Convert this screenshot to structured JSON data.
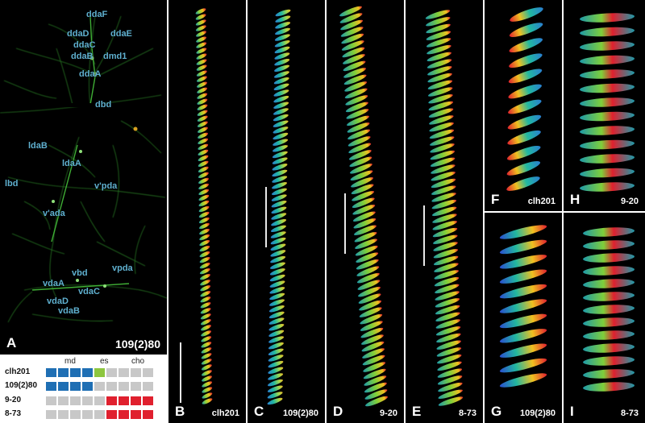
{
  "panel_a": {
    "label": "A",
    "strain": "109(2)80",
    "neurons": [
      "ddaF",
      "ddaD",
      "ddaE",
      "ddaC",
      "ddaB",
      "dmd1",
      "ddaA",
      "dbd",
      "ldaB",
      "ldaA",
      "lbd",
      "v'pda",
      "v'ada",
      "vbd",
      "vpda",
      "vdaA",
      "vdaC",
      "vdaD",
      "vdaB"
    ]
  },
  "table": {
    "headers": [
      "md",
      "es",
      "cho"
    ],
    "rows": [
      {
        "name": "clh201",
        "cells": [
          "md",
          "md",
          "md",
          "md",
          "es",
          "none",
          "none",
          "none",
          "none"
        ]
      },
      {
        "name": "109(2)80",
        "cells": [
          "md",
          "md",
          "md",
          "md",
          "none",
          "none",
          "none",
          "none",
          "none"
        ]
      },
      {
        "name": "9-20",
        "cells": [
          "none",
          "none",
          "none",
          "none",
          "none",
          "cho",
          "cho",
          "cho",
          "cho"
        ]
      },
      {
        "name": "8-73",
        "cells": [
          "none",
          "none",
          "none",
          "none",
          "none",
          "cho",
          "cho",
          "cho",
          "cho"
        ]
      }
    ],
    "colors": {
      "md": "#1f6fb4",
      "es": "#8dc63f",
      "cho": "#e0202e",
      "none": "#c8c8c8"
    }
  },
  "panels": {
    "B": {
      "label": "B",
      "strain": "clh201"
    },
    "C": {
      "label": "C",
      "strain": "109(2)80"
    },
    "D": {
      "label": "D",
      "strain": "9-20"
    },
    "E": {
      "label": "E",
      "strain": "8-73"
    },
    "F": {
      "label": "F",
      "strain": "clh201"
    },
    "G": {
      "label": "G",
      "strain": "109(2)80"
    },
    "H": {
      "label": "H",
      "strain": "9-20"
    },
    "I": {
      "label": "I",
      "strain": "8-73"
    }
  }
}
